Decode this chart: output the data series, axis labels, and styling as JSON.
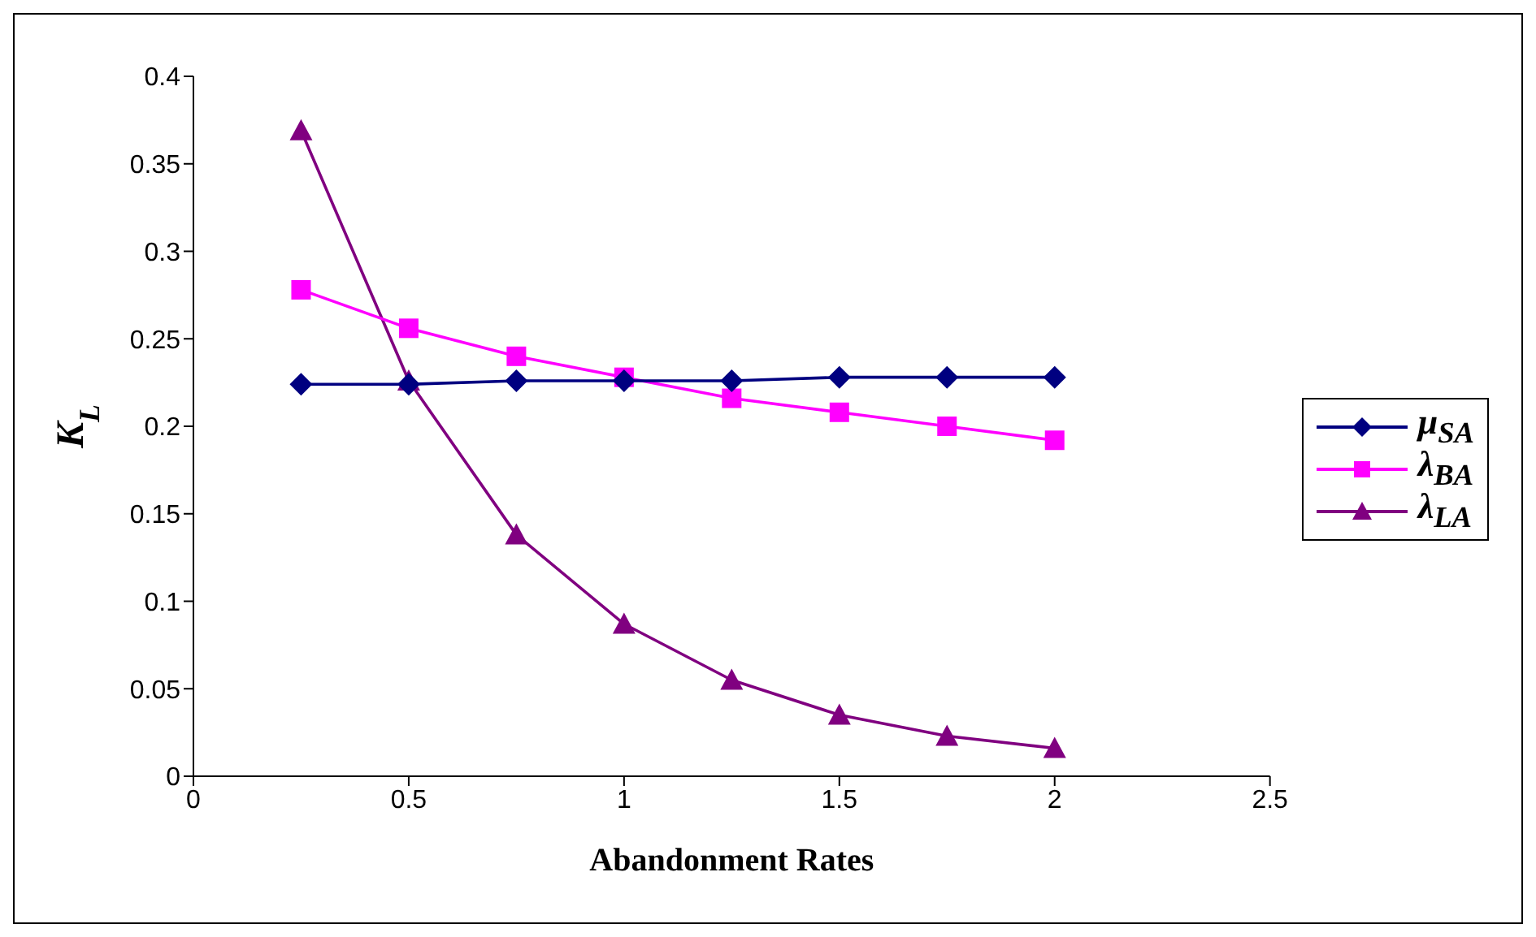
{
  "chart_data": {
    "type": "line",
    "xlabel": "Abandonment Rates",
    "ylabel": "K$_{L}$",
    "x": [
      0.25,
      0.5,
      0.75,
      1,
      1.25,
      1.5,
      1.75,
      2
    ],
    "series": [
      {
        "name": "μ$_{SA}$",
        "color": "#000080",
        "marker": "diamond",
        "values": [
          0.224,
          0.224,
          0.226,
          0.226,
          0.226,
          0.228,
          0.228,
          0.228
        ]
      },
      {
        "name": "λ$_{BA}$",
        "color": "#ff00ff",
        "marker": "square",
        "values": [
          0.278,
          0.256,
          0.24,
          0.228,
          0.216,
          0.208,
          0.2,
          0.192
        ]
      },
      {
        "name": "λ$_{LA}$",
        "color": "#800080",
        "marker": "triangle",
        "values": [
          0.369,
          0.226,
          0.138,
          0.087,
          0.055,
          0.035,
          0.023,
          0.016
        ]
      }
    ],
    "xlim": [
      0,
      2.5
    ],
    "xticks": [
      0,
      0.5,
      1,
      1.5,
      2,
      2.5
    ],
    "ylim": [
      0,
      0.4
    ],
    "yticks": [
      0,
      0.05,
      0.1,
      0.15,
      0.2,
      0.25,
      0.3,
      0.35,
      0.4
    ],
    "grid": false,
    "legend": "right",
    "line_style": "solid"
  }
}
